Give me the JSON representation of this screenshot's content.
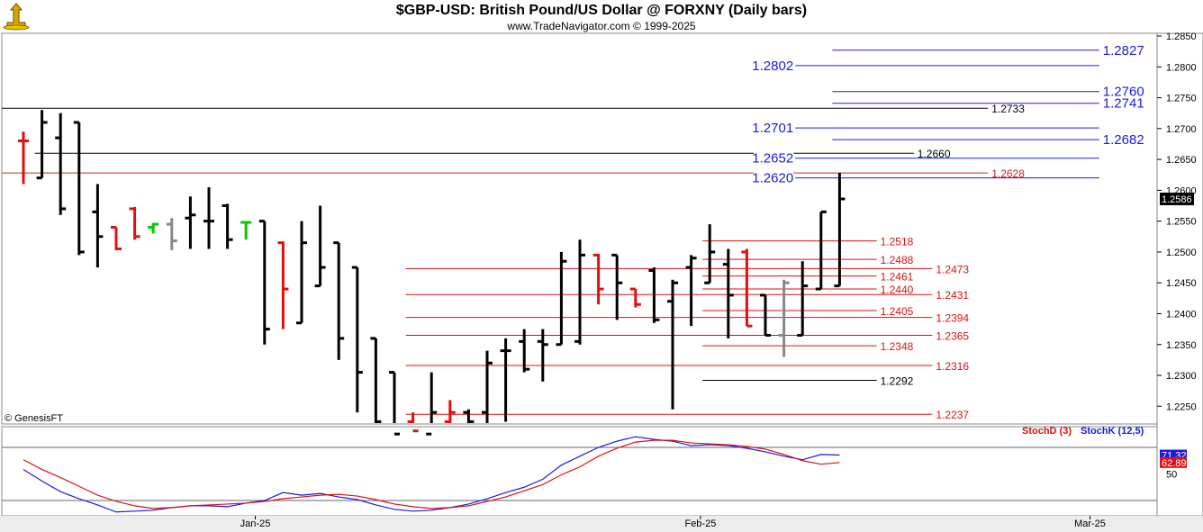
{
  "header": {
    "title": "$GBP-USD:  British Pound/US Dollar @ FORXNY  (Daily bars)",
    "subtitle": "www.TradeNavigator.com © 1999-2025"
  },
  "chart_data": [
    {
      "type": "ohlc",
      "price_axis": {
        "ylim": [
          2.22,
          1.286
        ],
        "ticks": [
          "1.2250",
          "1.2300",
          "1.2350",
          "1.2400",
          "1.2450",
          "1.2500",
          "1.2550",
          "1.2600",
          "1.2650",
          "1.2700",
          "1.2750",
          "1.2800",
          "1.2850"
        ],
        "tick_values": [
          1.225,
          1.23,
          1.235,
          1.24,
          1.245,
          1.25,
          1.255,
          1.26,
          1.265,
          1.27,
          1.275,
          1.28,
          1.285
        ],
        "last_price_label": "1.2586",
        "last_price": 1.2586
      },
      "x_axis": {
        "labels": [
          "Jan-25",
          "Feb-25",
          "Mar-25"
        ],
        "label_bar_index": [
          12.5,
          36.5,
          57.5
        ]
      },
      "copyright": "© GenesisFT",
      "bars": [
        {
          "i": 0,
          "o": 1.268,
          "h": 1.2695,
          "l": 1.261,
          "c": 1.268,
          "color": "red"
        },
        {
          "i": 1,
          "o": 1.262,
          "h": 1.273,
          "l": 1.262,
          "c": 1.271,
          "color": "black"
        },
        {
          "i": 2,
          "o": 1.2685,
          "h": 1.2725,
          "l": 1.256,
          "c": 1.257,
          "color": "black"
        },
        {
          "i": 3,
          "o": 1.271,
          "h": 1.271,
          "l": 1.2495,
          "c": 1.25,
          "color": "black"
        },
        {
          "i": 4,
          "o": 1.2565,
          "h": 1.261,
          "l": 1.2475,
          "c": 1.2525,
          "color": "black"
        },
        {
          "i": 5,
          "o": 1.254,
          "h": 1.254,
          "l": 1.2503,
          "c": 1.2505,
          "color": "red"
        },
        {
          "i": 6,
          "o": 1.257,
          "h": 1.2573,
          "l": 1.252,
          "c": 1.2525,
          "color": "red"
        },
        {
          "i": 7,
          "o": 1.254,
          "h": 1.2547,
          "l": 1.253,
          "c": 1.2545,
          "color": "green"
        },
        {
          "i": 8,
          "o": 1.2545,
          "h": 1.2555,
          "l": 1.2503,
          "c": 1.2518,
          "color": "gray"
        },
        {
          "i": 9,
          "o": 1.2555,
          "h": 1.259,
          "l": 1.2505,
          "c": 1.256,
          "color": "black"
        },
        {
          "i": 10,
          "o": 1.255,
          "h": 1.2605,
          "l": 1.2505,
          "c": 1.255,
          "color": "black"
        },
        {
          "i": 11,
          "o": 1.2575,
          "h": 1.2578,
          "l": 1.2505,
          "c": 1.252,
          "color": "black"
        },
        {
          "i": 12,
          "o": 1.2548,
          "h": 1.255,
          "l": 1.252,
          "c": 1.2548,
          "color": "green"
        },
        {
          "i": 13,
          "o": 1.255,
          "h": 1.255,
          "l": 1.235,
          "c": 1.2375,
          "color": "black"
        },
        {
          "i": 14,
          "o": 1.2515,
          "h": 1.2517,
          "l": 1.2375,
          "c": 1.244,
          "color": "red"
        },
        {
          "i": 15,
          "o": 1.2385,
          "h": 1.255,
          "l": 1.2385,
          "c": 1.2515,
          "color": "black"
        },
        {
          "i": 16,
          "o": 1.2445,
          "h": 1.2575,
          "l": 1.2445,
          "c": 1.2475,
          "color": "black"
        },
        {
          "i": 17,
          "o": 1.2515,
          "h": 1.2515,
          "l": 1.2325,
          "c": 1.236,
          "color": "black"
        },
        {
          "i": 18,
          "o": 1.2475,
          "h": 1.2475,
          "l": 1.224,
          "c": 1.2305,
          "color": "black"
        },
        {
          "i": 19,
          "o": 1.236,
          "h": 1.236,
          "l": 1.222,
          "c": 1.2225,
          "color": "black"
        },
        {
          "i": 20,
          "o": 1.2305,
          "h": 1.2305,
          "l": 1.22,
          "c": 1.2205,
          "color": "black"
        },
        {
          "i": 21,
          "o": 1.2225,
          "h": 1.224,
          "l": 1.22,
          "c": 1.221,
          "color": "red"
        },
        {
          "i": 22,
          "o": 1.2205,
          "h": 1.2305,
          "l": 1.219,
          "c": 1.224,
          "color": "black"
        },
        {
          "i": 23,
          "o": 1.2225,
          "h": 1.226,
          "l": 1.222,
          "c": 1.224,
          "color": "red"
        },
        {
          "i": 24,
          "o": 1.224,
          "h": 1.2245,
          "l": 1.2185,
          "c": 1.2225,
          "color": "black"
        },
        {
          "i": 25,
          "o": 1.224,
          "h": 1.234,
          "l": 1.222,
          "c": 1.232,
          "color": "black"
        },
        {
          "i": 26,
          "o": 1.234,
          "h": 1.236,
          "l": 1.2225,
          "c": 1.234,
          "color": "black"
        },
        {
          "i": 27,
          "o": 1.2355,
          "h": 1.2375,
          "l": 1.2305,
          "c": 1.231,
          "color": "black"
        },
        {
          "i": 28,
          "o": 1.2355,
          "h": 1.2375,
          "l": 1.229,
          "c": 1.235,
          "color": "black"
        },
        {
          "i": 29,
          "o": 1.235,
          "h": 1.25,
          "l": 1.235,
          "c": 1.2485,
          "color": "black"
        },
        {
          "i": 30,
          "o": 1.2355,
          "h": 1.252,
          "l": 1.235,
          "c": 1.2495,
          "color": "black"
        },
        {
          "i": 31,
          "o": 1.2495,
          "h": 1.2497,
          "l": 1.2415,
          "c": 1.244,
          "color": "red"
        },
        {
          "i": 32,
          "o": 1.2495,
          "h": 1.2495,
          "l": 1.239,
          "c": 1.245,
          "color": "black"
        },
        {
          "i": 33,
          "o": 1.244,
          "h": 1.244,
          "l": 1.241,
          "c": 1.2415,
          "color": "red"
        },
        {
          "i": 34,
          "o": 1.247,
          "h": 1.2475,
          "l": 1.2385,
          "c": 1.239,
          "color": "black"
        },
        {
          "i": 35,
          "o": 1.242,
          "h": 1.2455,
          "l": 1.2245,
          "c": 1.245,
          "color": "black"
        },
        {
          "i": 36,
          "o": 1.2475,
          "h": 1.2495,
          "l": 1.238,
          "c": 1.249,
          "color": "black"
        },
        {
          "i": 37,
          "o": 1.245,
          "h": 1.2545,
          "l": 1.245,
          "c": 1.25,
          "color": "black"
        },
        {
          "i": 38,
          "o": 1.248,
          "h": 1.2505,
          "l": 1.236,
          "c": 1.243,
          "color": "black"
        },
        {
          "i": 39,
          "o": 1.25,
          "h": 1.2505,
          "l": 1.238,
          "c": 1.238,
          "color": "red"
        },
        {
          "i": 40,
          "o": 1.243,
          "h": 1.243,
          "l": 1.2365,
          "c": 1.2365,
          "color": "black"
        },
        {
          "i": 41,
          "o": 1.2365,
          "h": 1.2455,
          "l": 1.233,
          "c": 1.245,
          "color": "gray"
        },
        {
          "i": 42,
          "o": 1.2365,
          "h": 1.2485,
          "l": 1.2365,
          "c": 1.2445,
          "color": "black"
        },
        {
          "i": 43,
          "o": 1.244,
          "h": 1.2565,
          "l": 1.244,
          "c": 1.2565,
          "color": "black"
        },
        {
          "i": 44,
          "o": 1.2445,
          "h": 1.2628,
          "l": 1.2445,
          "c": 1.2586,
          "color": "black"
        }
      ],
      "levels": [
        {
          "value": 1.2827,
          "label": "1.2827",
          "color": "#1a1ae6",
          "from": 44,
          "to": 58,
          "label_at": "end",
          "label_size": "big"
        },
        {
          "value": 1.2802,
          "label": "1.2802",
          "color": "#1a1ae6",
          "from": 42,
          "to": 58,
          "label_at": "start",
          "label_size": "big"
        },
        {
          "value": 1.276,
          "label": "1.2760",
          "color": "#1a1ae6",
          "from": 44,
          "to": 58,
          "label_at": "end",
          "label_size": "big"
        },
        {
          "value": 1.2741,
          "label": "1.2741",
          "color": "#1a1ae6",
          "from": 44,
          "to": 58,
          "label_at": "end",
          "label_size": "big"
        },
        {
          "value": 1.2733,
          "label": "1.2733",
          "color": "#000000",
          "from": -1,
          "to": 52,
          "label_at": "end",
          "label_size": "small"
        },
        {
          "value": 1.2701,
          "label": "1.2701",
          "color": "#1a1ae6",
          "from": 42,
          "to": 58,
          "label_at": "start",
          "label_size": "big"
        },
        {
          "value": 1.2682,
          "label": "1.2682",
          "color": "#1a1ae6",
          "from": 44,
          "to": 58,
          "label_at": "end",
          "label_size": "big"
        },
        {
          "value": 1.266,
          "label": "1.2660",
          "color": "#000000",
          "from": 1,
          "to": 48,
          "label_at": "end",
          "label_size": "small"
        },
        {
          "value": 1.2652,
          "label": "1.2652",
          "color": "#1a1ae6",
          "from": 42,
          "to": 58,
          "label_at": "start",
          "label_size": "big"
        },
        {
          "value": 1.2628,
          "label": "1.2628",
          "color": "#cc2222",
          "from": -1,
          "to": 52,
          "label_at": "end",
          "label_size": "small"
        },
        {
          "value": 1.262,
          "label": "1.2620",
          "color": "#1a1ae6",
          "from": 42,
          "to": 58,
          "label_at": "start",
          "label_size": "big"
        },
        {
          "value": 1.2518,
          "label": "1.2518",
          "color": "#dd1111",
          "from": 37,
          "to": 46,
          "label_at": "end",
          "label_size": "small"
        },
        {
          "value": 1.2488,
          "label": "1.2488",
          "color": "#dd1111",
          "from": 37,
          "to": 46,
          "label_at": "end",
          "label_size": "small"
        },
        {
          "value": 1.2473,
          "label": "1.2473",
          "color": "#dd1111",
          "from": 21,
          "to": 49,
          "label_at": "end",
          "label_size": "small"
        },
        {
          "value": 1.2461,
          "label": "1.2461",
          "color": "#dd1111",
          "from": 37,
          "to": 46,
          "label_at": "end",
          "label_size": "small"
        },
        {
          "value": 1.244,
          "label": "1.2440",
          "color": "#dd1111",
          "from": 37,
          "to": 46,
          "label_at": "end",
          "label_size": "small"
        },
        {
          "value": 1.2431,
          "label": "1.2431",
          "color": "#dd1111",
          "from": 21,
          "to": 49,
          "label_at": "end",
          "label_size": "small"
        },
        {
          "value": 1.2405,
          "label": "1.2405",
          "color": "#dd1111",
          "from": 37,
          "to": 46,
          "label_at": "end",
          "label_size": "small"
        },
        {
          "value": 1.2394,
          "label": "1.2394",
          "color": "#dd1111",
          "from": 21,
          "to": 49,
          "label_at": "end",
          "label_size": "small"
        },
        {
          "value": 1.2365,
          "label": "1.2365",
          "color": "#dd1111",
          "from": 21,
          "to": 49,
          "label_at": "end",
          "label_size": "small"
        },
        {
          "value": 1.2348,
          "label": "1.2348",
          "color": "#dd1111",
          "from": 37,
          "to": 46,
          "label_at": "end",
          "label_size": "small"
        },
        {
          "value": 1.2316,
          "label": "1.2316",
          "color": "#dd1111",
          "from": 21,
          "to": 49,
          "label_at": "end",
          "label_size": "small"
        },
        {
          "value": 1.2292,
          "label": "1.2292",
          "color": "#000000",
          "from": 37,
          "to": 46,
          "label_at": "end",
          "label_size": "small"
        },
        {
          "value": 1.2237,
          "label": "1.2237",
          "color": "#dd1111",
          "from": 21,
          "to": 49,
          "label_at": "end",
          "label_size": "small"
        }
      ]
    },
    {
      "type": "line",
      "title": "",
      "legend": [
        "StochD (3)",
        "StochK (12,5)"
      ],
      "ylim": [
        0,
        100
      ],
      "ticks": [
        "50"
      ],
      "tick_values": [
        50
      ],
      "reference_lines": [
        80,
        20
      ],
      "last_values": [
        "71.32",
        "62.89"
      ],
      "series": [
        {
          "name": "StochK (12,5)",
          "color": "#1a1ae6",
          "values": [
            55,
            42,
            30,
            22,
            15,
            7,
            8,
            9,
            12,
            14,
            14,
            13,
            17,
            20,
            29,
            26,
            28,
            24,
            21,
            15,
            10,
            8,
            9,
            12,
            16,
            22,
            29,
            35,
            44,
            60,
            70,
            80,
            87,
            92,
            89,
            87,
            82,
            83,
            82,
            79,
            75,
            70,
            66,
            72,
            71.32
          ]
        },
        {
          "name": "StochD (3)",
          "color": "#dd1111",
          "values": [
            66,
            55,
            46,
            36,
            26,
            19,
            14,
            11,
            12,
            14,
            15,
            16,
            17,
            19,
            22,
            24,
            26,
            27,
            25,
            21,
            16,
            13,
            11,
            12,
            14,
            19,
            24,
            31,
            38,
            49,
            58,
            70,
            79,
            86,
            88,
            88,
            85,
            84,
            83,
            81,
            78,
            72,
            65,
            61,
            62.89
          ]
        }
      ]
    }
  ]
}
